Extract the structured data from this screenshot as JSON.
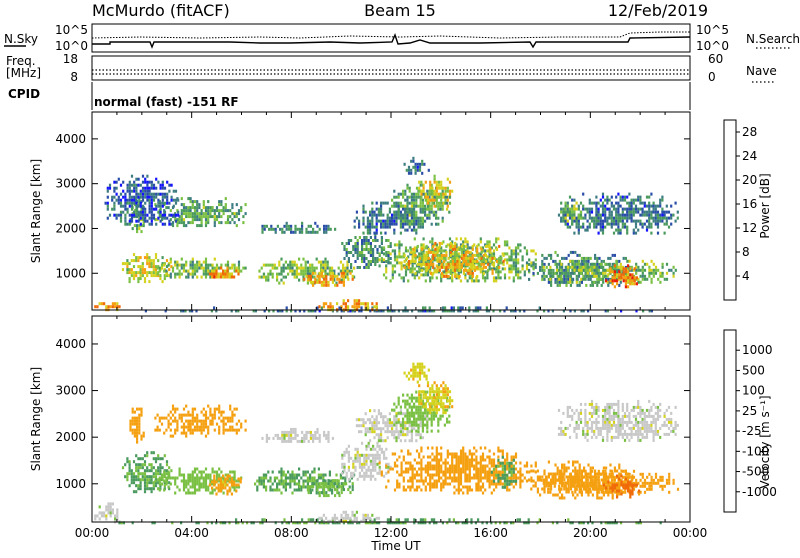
{
  "header": {
    "station": "McMurdo (fitACF)",
    "beam": "Beam 15",
    "date": "12/Feb/2019"
  },
  "noise_panel": {
    "left_label": "N.Sky",
    "left_ticks": [
      "10^5",
      "10^0"
    ],
    "right_label": "N.Search",
    "right_ticks": [
      "10^5",
      "10^0"
    ]
  },
  "freq_panel": {
    "left_label_1": "Freq.",
    "left_label_2": "[MHz]",
    "left_ticks": [
      "18",
      "8"
    ],
    "right_label": "Nave",
    "right_ticks": [
      "60",
      "0"
    ]
  },
  "cpid_panel": {
    "label": "CPID",
    "value": "normal (fast) -151 RF"
  },
  "colors": {
    "power_scale": [
      "#1414ff",
      "#2a4ea8",
      "#3d7d82",
      "#4a9a5e",
      "#7ac043",
      "#d4d21c",
      "#f5a010",
      "#f06a0a",
      "#e81e0a"
    ],
    "velocity_scale": [
      "#e81e0a",
      "#f06a0a",
      "#f5a010",
      "#d4d21c",
      "#c8c8c8",
      "#7ac043",
      "#4a9a5e",
      "#3d6aa8",
      "#1414ff"
    ]
  },
  "chart_data": [
    {
      "type": "heatmap",
      "name": "power",
      "ylabel": "Slant Range [km]",
      "yticks": [
        "1000",
        "2000",
        "3000",
        "4000"
      ],
      "ylim": [
        180,
        4600
      ],
      "xlim": [
        0,
        24
      ],
      "colorbar_label": "Power [dB]",
      "colorbar_ticks": [
        "4",
        "8",
        "12",
        "16",
        "20",
        "24",
        "28"
      ],
      "colorbar_range": [
        0,
        30
      ],
      "regions": [
        {
          "t0": 0.0,
          "t1": 1.2,
          "r0": 200,
          "r1": 420,
          "v": 22
        },
        {
          "t0": 0.0,
          "t1": 24.0,
          "r0": 180,
          "r1": 260,
          "v": 8
        },
        {
          "t0": 1.2,
          "t1": 3.2,
          "r0": 800,
          "r1": 1450,
          "v": 18
        },
        {
          "t0": 2.5,
          "t1": 6.2,
          "r0": 900,
          "r1": 1350,
          "v": 14
        },
        {
          "t0": 4.6,
          "t1": 6.0,
          "r0": 900,
          "r1": 1150,
          "v": 22
        },
        {
          "t0": 1.5,
          "t1": 2.1,
          "r0": 1900,
          "r1": 2700,
          "v": 12
        },
        {
          "t0": 2.5,
          "t1": 6.2,
          "r0": 2050,
          "r1": 2700,
          "v": 12
        },
        {
          "t0": 6.8,
          "t1": 9.8,
          "r0": 1900,
          "r1": 2150,
          "v": 8
        },
        {
          "t0": 6.5,
          "t1": 10.5,
          "r0": 800,
          "r1": 1350,
          "v": 14
        },
        {
          "t0": 8.3,
          "t1": 10.5,
          "r0": 700,
          "r1": 1100,
          "v": 22
        },
        {
          "t0": 10.0,
          "t1": 12.0,
          "r0": 1100,
          "r1": 1900,
          "v": 10
        },
        {
          "t0": 10.5,
          "t1": 13.5,
          "r0": 1900,
          "r1": 2600,
          "v": 8
        },
        {
          "t0": 12.0,
          "t1": 14.3,
          "r0": 2100,
          "r1": 3000,
          "v": 12
        },
        {
          "t0": 13.0,
          "t1": 14.5,
          "r0": 2500,
          "r1": 3200,
          "v": 18
        },
        {
          "t0": 12.5,
          "t1": 13.5,
          "r0": 3200,
          "r1": 3600,
          "v": 8
        },
        {
          "t0": 11.5,
          "t1": 17.8,
          "r0": 800,
          "r1": 1800,
          "v": 14
        },
        {
          "t0": 12.5,
          "t1": 16.5,
          "r0": 950,
          "r1": 1700,
          "v": 20
        },
        {
          "t0": 17.5,
          "t1": 21.5,
          "r0": 700,
          "r1": 1500,
          "v": 10
        },
        {
          "t0": 18.0,
          "t1": 23.5,
          "r0": 800,
          "r1": 1300,
          "v": 14
        },
        {
          "t0": 18.7,
          "t1": 23.5,
          "r0": 1900,
          "r1": 2800,
          "v": 8
        },
        {
          "t0": 18.7,
          "t1": 19.6,
          "r0": 2100,
          "r1": 2600,
          "v": 14
        },
        {
          "t0": 20.5,
          "t1": 22.0,
          "r0": 700,
          "r1": 1200,
          "v": 24
        },
        {
          "t0": 9.0,
          "t1": 11.5,
          "r0": 180,
          "r1": 420,
          "v": 22
        },
        {
          "t0": 0.5,
          "t1": 3.5,
          "r0": 2100,
          "r1": 3200,
          "v": 6
        }
      ]
    },
    {
      "type": "heatmap",
      "name": "velocity",
      "ylabel": "Slant Range [km]",
      "yticks": [
        "1000",
        "2000",
        "3000",
        "4000"
      ],
      "ylim": [
        180,
        4600
      ],
      "xlim": [
        0,
        24
      ],
      "xlabel": "Time UT",
      "xticks": [
        "00:00",
        "04:00",
        "08:00",
        "12:00",
        "16:00",
        "20:00",
        "00:00"
      ],
      "colorbar_label": "Velocity [m s⁻¹]",
      "colorbar_ticks": [
        "-1000",
        "-500",
        "-100",
        "-25",
        "25",
        "100",
        "500",
        "1000"
      ],
      "regions": [
        {
          "t0": 0.0,
          "t1": 1.2,
          "r0": 200,
          "r1": 600,
          "v": 0
        },
        {
          "t0": 0.0,
          "t1": 24.0,
          "r0": 180,
          "r1": 260,
          "v": 120
        },
        {
          "t0": 1.2,
          "t1": 3.2,
          "r0": 800,
          "r1": 1700,
          "v": 120
        },
        {
          "t0": 2.5,
          "t1": 6.2,
          "r0": 800,
          "r1": 1350,
          "v": 60
        },
        {
          "t0": 4.6,
          "t1": 6.0,
          "r0": 800,
          "r1": 1200,
          "v": -150
        },
        {
          "t0": 1.5,
          "t1": 2.1,
          "r0": 1900,
          "r1": 2700,
          "v": -200
        },
        {
          "t0": 2.5,
          "t1": 6.2,
          "r0": 2050,
          "r1": 2700,
          "v": -250
        },
        {
          "t0": 6.8,
          "t1": 9.8,
          "r0": 1900,
          "r1": 2200,
          "v": 0
        },
        {
          "t0": 6.5,
          "t1": 10.5,
          "r0": 800,
          "r1": 1350,
          "v": 120
        },
        {
          "t0": 8.3,
          "t1": 10.5,
          "r0": 750,
          "r1": 1100,
          "v": 80
        },
        {
          "t0": 10.0,
          "t1": 12.0,
          "r0": 1100,
          "r1": 1900,
          "v": 0
        },
        {
          "t0": 10.5,
          "t1": 13.5,
          "r0": 1900,
          "r1": 2600,
          "v": 0
        },
        {
          "t0": 12.0,
          "t1": 14.3,
          "r0": 2100,
          "r1": 3000,
          "v": 60
        },
        {
          "t0": 13.0,
          "t1": 14.5,
          "r0": 2500,
          "r1": 3200,
          "v": -80
        },
        {
          "t0": 12.5,
          "t1": 13.5,
          "r0": 3200,
          "r1": 3600,
          "v": -80
        },
        {
          "t0": 11.5,
          "t1": 17.8,
          "r0": 800,
          "r1": 1800,
          "v": -250
        },
        {
          "t0": 16.0,
          "t1": 17.0,
          "r0": 900,
          "r1": 1600,
          "v": 120
        },
        {
          "t0": 17.5,
          "t1": 21.5,
          "r0": 700,
          "r1": 1500,
          "v": -200
        },
        {
          "t0": 18.0,
          "t1": 23.5,
          "r0": 800,
          "r1": 1300,
          "v": -300
        },
        {
          "t0": 18.7,
          "t1": 23.5,
          "r0": 1900,
          "r1": 2800,
          "v": 0
        },
        {
          "t0": 20.5,
          "t1": 22.0,
          "r0": 700,
          "r1": 1200,
          "v": -600
        },
        {
          "t0": 9.0,
          "t1": 11.5,
          "r0": 180,
          "r1": 420,
          "v": 0
        }
      ]
    }
  ]
}
